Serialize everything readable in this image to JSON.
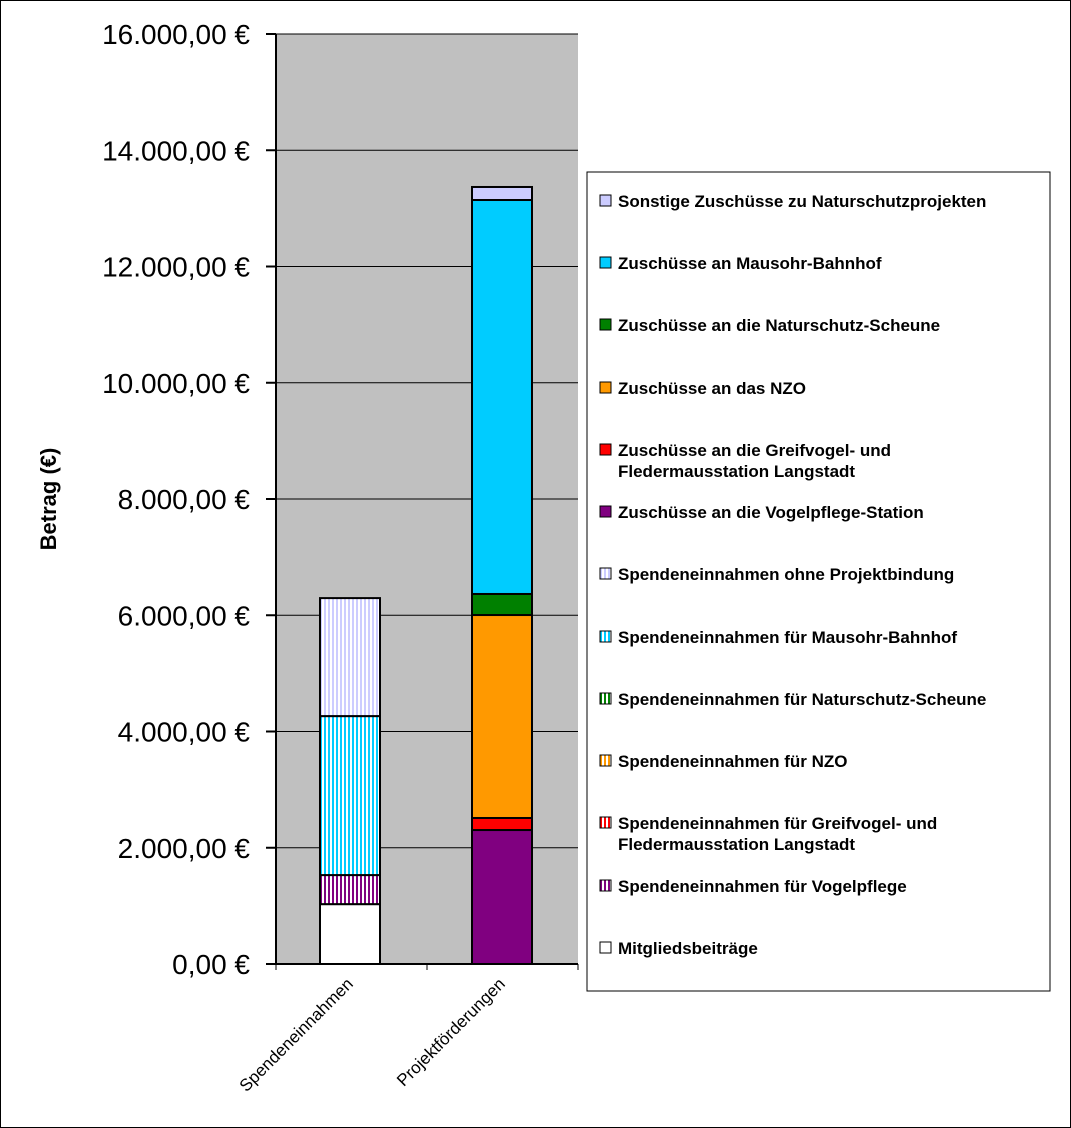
{
  "chart_data": {
    "type": "bar",
    "stacked": true,
    "ylabel": "Betrag (€)",
    "ylim": [
      0,
      16000
    ],
    "yticks": [
      "0,00 €",
      "2.000,00 €",
      "4.000,00 €",
      "6.000,00 €",
      "8.000,00 €",
      "10.000,00 €",
      "12.000,00 €",
      "14.000,00 €",
      "16.000,00 €"
    ],
    "ytick_values": [
      0,
      2000,
      4000,
      6000,
      8000,
      10000,
      12000,
      14000,
      16000
    ],
    "grid": true,
    "legend_position": "right",
    "plot_background": "#c0c0c0",
    "categories": [
      "Spendeneinnahmen",
      "Projektförderungen"
    ],
    "series": [
      {
        "name": "Mitgliedsbeiträge",
        "color": "#ffffff",
        "pattern": "solid",
        "values": [
          1030,
          0
        ]
      },
      {
        "name": "Spendeneinnahmen für Vogelpflege",
        "color": "#800080",
        "pattern": "vstripe",
        "values": [
          500,
          0
        ]
      },
      {
        "name": "Spendeneinnahmen für Greifvogel- und Fledermausstation Langstadt",
        "color": "#ff0000",
        "pattern": "vstripe",
        "values": [
          0,
          0
        ]
      },
      {
        "name": "Spendeneinnahmen für NZO",
        "color": "#ff9900",
        "pattern": "vstripe",
        "values": [
          0,
          0
        ]
      },
      {
        "name": "Spendeneinnahmen für Naturschutz-Scheune",
        "color": "#008000",
        "pattern": "vstripe",
        "values": [
          0,
          0
        ]
      },
      {
        "name": "Spendeneinnahmen für Mausohr-Bahnhof",
        "color": "#00ccff",
        "pattern": "vstripe",
        "values": [
          2735,
          0
        ]
      },
      {
        "name": "Spendeneinnahmen ohne Projektbindung",
        "color": "#ccccff",
        "pattern": "vstripe",
        "values": [
          2030,
          0
        ]
      },
      {
        "name": "Zuschüsse an die Vogelpflege-Station",
        "color": "#800080",
        "pattern": "solid",
        "values": [
          0,
          2305
        ]
      },
      {
        "name": "Zuschüsse an die Greifvogel- und Fledermausstation Langstadt",
        "color": "#ff0000",
        "pattern": "solid",
        "values": [
          0,
          207
        ]
      },
      {
        "name": "Zuschüsse an das NZO",
        "color": "#ff9900",
        "pattern": "solid",
        "values": [
          0,
          3492
        ]
      },
      {
        "name": "Zuschüsse an die Naturschutz-Scheune",
        "color": "#008000",
        "pattern": "solid",
        "values": [
          0,
          362
        ]
      },
      {
        "name": "Zuschüsse an Mausohr-Bahnhof",
        "color": "#00ccff",
        "pattern": "solid",
        "values": [
          0,
          6778
        ]
      },
      {
        "name": "Sonstige Zuschüsse zu Naturschutzprojekten",
        "color": "#ccccff",
        "pattern": "solid",
        "values": [
          0,
          224
        ]
      }
    ],
    "legend_lines": [
      [
        "Sonstige Zuschüsse zu Naturschutzprojekten"
      ],
      [
        "Zuschüsse an Mausohr-Bahnhof"
      ],
      [
        "Zuschüsse an die Naturschutz-Scheune"
      ],
      [
        "Zuschüsse an das NZO"
      ],
      [
        "Zuschüsse an die Greifvogel- und",
        "Fledermausstation Langstadt"
      ],
      [
        "Zuschüsse an die Vogelpflege-Station"
      ],
      [
        "Spendeneinnahmen ohne Projektbindung"
      ],
      [
        "Spendeneinnahmen für Mausohr-Bahnhof"
      ],
      [
        "Spendeneinnahmen für Naturschutz-Scheune"
      ],
      [
        "Spendeneinnahmen für NZO"
      ],
      [
        "Spendeneinnahmen für Greifvogel- und",
        "Fledermausstation Langstadt"
      ],
      [
        "Spendeneinnahmen für Vogelpflege"
      ],
      [
        "Mitgliedsbeiträge"
      ]
    ]
  }
}
